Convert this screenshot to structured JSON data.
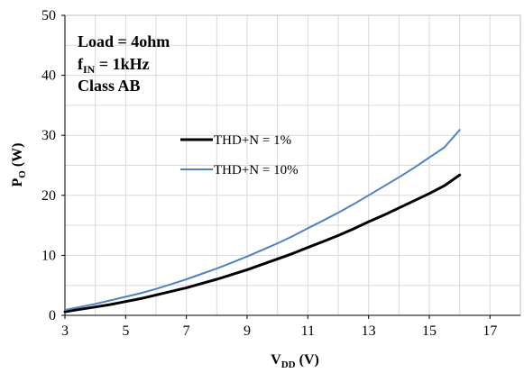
{
  "chart_data": {
    "type": "line",
    "x": [
      3,
      3.5,
      4,
      4.5,
      5,
      5.5,
      6,
      6.5,
      7,
      7.5,
      8,
      8.5,
      9,
      9.5,
      10,
      10.5,
      11,
      11.5,
      12,
      12.5,
      13,
      13.5,
      14,
      14.5,
      15,
      15.5,
      16
    ],
    "series": [
      {
        "name": "THD+N = 1%",
        "color": "#000000",
        "values": [
          0.6,
          1.0,
          1.4,
          1.8,
          2.3,
          2.8,
          3.4,
          4.0,
          4.6,
          5.3,
          6.0,
          6.8,
          7.6,
          8.5,
          9.4,
          10.3,
          11.3,
          12.3,
          13.3,
          14.4,
          15.6,
          16.7,
          17.9,
          19.1,
          20.3,
          21.6,
          23.4
        ],
        "label": "THD+N = 1%"
      },
      {
        "name": "THD+N = 10%",
        "color": "#4f81bd",
        "values": [
          0.9,
          1.4,
          1.9,
          2.5,
          3.1,
          3.7,
          4.4,
          5.2,
          6.0,
          6.9,
          7.8,
          8.8,
          9.8,
          10.9,
          12.0,
          13.2,
          14.5,
          15.8,
          17.1,
          18.5,
          20.0,
          21.5,
          23.0,
          24.6,
          26.3,
          28.0,
          30.9
        ],
        "label": "THD+N = 10%"
      }
    ],
    "xlim": [
      3,
      18
    ],
    "ylim": [
      0,
      50
    ],
    "x_ticks": [
      "3",
      "5",
      "7",
      "9",
      "11",
      "13",
      "15",
      "17"
    ],
    "y_ticks": [
      "0",
      "10",
      "20",
      "30",
      "40",
      "50"
    ],
    "x_tick_values": [
      3,
      5,
      7,
      9,
      11,
      13,
      15,
      17
    ],
    "y_tick_values": [
      0,
      10,
      20,
      30,
      40,
      50
    ],
    "xlabel": {
      "main": "V",
      "sub": "DD",
      "tail": " (V)"
    },
    "ylabel": {
      "main": "P",
      "sub": "O",
      "tail": " (W)"
    },
    "grid": true,
    "legend_position": "center",
    "annotations": {
      "load": "Load = 4ohm",
      "fin_main": "f",
      "fin_sub": "IN",
      "fin_tail": " = 1kHz",
      "class": "Class AB"
    }
  }
}
